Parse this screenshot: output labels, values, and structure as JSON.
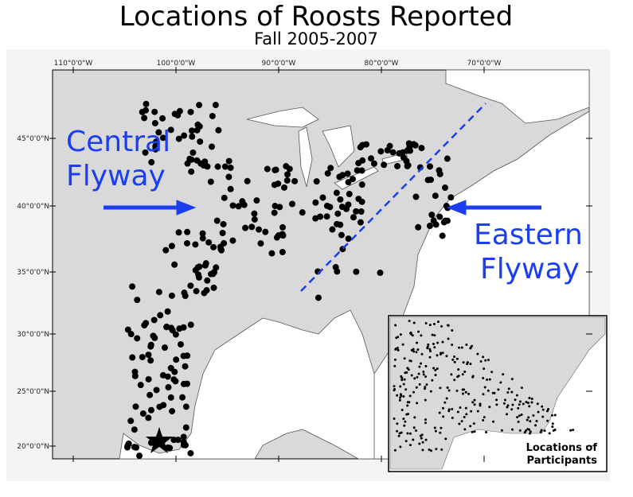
{
  "header": {
    "title": "Locations of Roosts Reported",
    "subtitle": "Fall 2005-2007"
  },
  "map": {
    "lon_labels": [
      "110°0'0\"W",
      "100°0'0\"W",
      "90°0'0\"W",
      "80°0'0\"W",
      "70°0'0\"W"
    ],
    "lat_labels": [
      "45°0'0\"N",
      "40°0'0\"N",
      "35°0'0\"N",
      "30°0'0\"N",
      "25°0'0\"N",
      "20°0'0\"N"
    ],
    "central_flyway": [
      "Central",
      "Flyway"
    ],
    "eastern_flyway": [
      "Eastern",
      "Flyway"
    ],
    "inset_caption": [
      "Locations of",
      "Participants"
    ]
  }
}
